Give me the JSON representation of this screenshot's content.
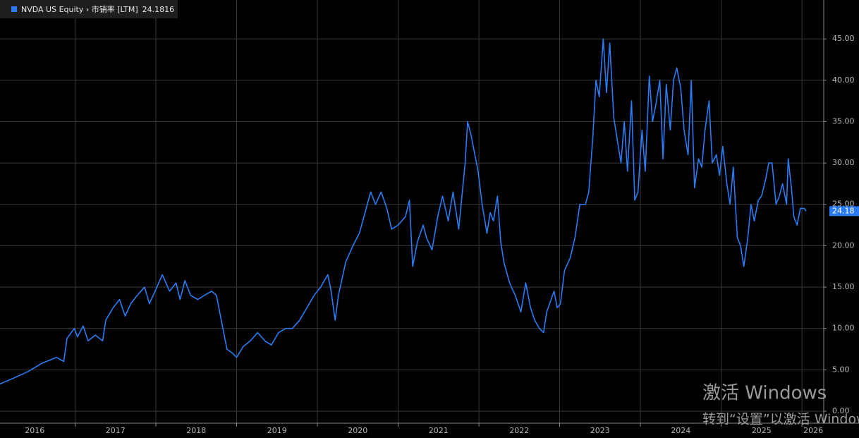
{
  "chart_data": {
    "type": "line",
    "x": [
      2016.07,
      2016.24,
      2016.42,
      2016.59,
      2016.77,
      2016.86,
      2016.9,
      2016.99,
      2017.03,
      2017.1,
      2017.16,
      2017.25,
      2017.34,
      2017.38,
      2017.47,
      2017.55,
      2017.62,
      2017.69,
      2017.77,
      2017.86,
      2017.92,
      2017.99,
      2018.08,
      2018.17,
      2018.25,
      2018.3,
      2018.36,
      2018.43,
      2018.52,
      2018.6,
      2018.69,
      2018.75,
      2018.79,
      2018.85,
      2018.88,
      2018.95,
      2019.0,
      2019.08,
      2019.17,
      2019.26,
      2019.35,
      2019.43,
      2019.52,
      2019.61,
      2019.69,
      2019.78,
      2019.87,
      2019.96,
      2020.04,
      2020.13,
      2020.17,
      2020.22,
      2020.26,
      2020.35,
      2020.44,
      2020.52,
      2020.59,
      2020.66,
      2020.72,
      2020.79,
      2020.86,
      2020.92,
      2021.0,
      2021.09,
      2021.14,
      2021.18,
      2021.24,
      2021.31,
      2021.35,
      2021.42,
      2021.49,
      2021.55,
      2021.62,
      2021.68,
      2021.75,
      2021.79,
      2021.83,
      2021.86,
      2021.9,
      2021.95,
      2021.99,
      2022.04,
      2022.1,
      2022.14,
      2022.18,
      2022.23,
      2022.27,
      2022.31,
      2022.38,
      2022.45,
      2022.52,
      2022.58,
      2022.64,
      2022.69,
      2022.75,
      2022.8,
      2022.84,
      2022.93,
      2022.97,
      2023.01,
      2023.06,
      2023.13,
      2023.19,
      2023.25,
      2023.32,
      2023.36,
      2023.41,
      2023.45,
      2023.49,
      2023.54,
      2023.58,
      2023.62,
      2023.67,
      2023.71,
      2023.76,
      2023.8,
      2023.84,
      2023.89,
      2023.93,
      2023.97,
      2024.02,
      2024.06,
      2024.11,
      2024.15,
      2024.19,
      2024.24,
      2024.28,
      2024.32,
      2024.37,
      2024.41,
      2024.45,
      2024.5,
      2024.54,
      2024.59,
      2024.63,
      2024.67,
      2024.72,
      2024.76,
      2024.8,
      2024.85,
      2024.89,
      2024.94,
      2024.98,
      2025.02,
      2025.07,
      2025.11,
      2025.15,
      2025.2,
      2025.24,
      2025.28,
      2025.33,
      2025.37,
      2025.41,
      2025.46,
      2025.5,
      2025.55,
      2025.59,
      2025.63,
      2025.68,
      2025.72,
      2025.76,
      2025.81,
      2025.83,
      2025.87,
      2025.9,
      2025.94,
      2025.98,
      2026.03,
      2026.05
    ],
    "series": [
      {
        "name": "NVDA US Equity › 市销率 [LTM]",
        "color": "#2b7bf3",
        "values": [
          3.3,
          4.0,
          4.8,
          5.8,
          6.5,
          6.0,
          8.8,
          10.0,
          9.0,
          10.3,
          8.5,
          9.2,
          8.5,
          11.0,
          12.5,
          13.5,
          11.5,
          13.0,
          14.0,
          15.0,
          13.0,
          14.5,
          16.5,
          14.5,
          15.5,
          13.5,
          15.8,
          14.0,
          13.5,
          14.0,
          14.5,
          14.0,
          12.0,
          9.0,
          7.5,
          7.0,
          6.5,
          7.8,
          8.5,
          9.5,
          8.5,
          8.0,
          9.5,
          10.0,
          10.0,
          11.0,
          12.5,
          14.0,
          15.0,
          16.5,
          14.5,
          11.0,
          14.0,
          18.0,
          20.0,
          21.5,
          24.0,
          26.5,
          25.0,
          26.5,
          24.5,
          22.0,
          22.5,
          23.5,
          25.5,
          17.5,
          20.5,
          22.5,
          21.0,
          19.5,
          23.5,
          26.0,
          23.0,
          26.5,
          22.0,
          26.0,
          30.0,
          35.0,
          33.5,
          31.0,
          29.0,
          25.0,
          21.5,
          24.0,
          23.0,
          26.0,
          20.5,
          18.0,
          15.5,
          14.0,
          12.0,
          15.5,
          12.5,
          11.0,
          10.0,
          9.5,
          12.0,
          14.5,
          12.5,
          13.0,
          17.0,
          18.5,
          21.0,
          25.0,
          25.0,
          26.5,
          33.0,
          40.0,
          38.0,
          45.0,
          38.5,
          44.5,
          35.5,
          33.0,
          30.0,
          35.0,
          29.0,
          37.5,
          25.5,
          26.5,
          34.0,
          29.0,
          40.5,
          35.0,
          37.0,
          40.0,
          30.5,
          39.5,
          34.0,
          40.0,
          41.5,
          39.0,
          34.0,
          31.0,
          40.0,
          27.0,
          30.5,
          29.5,
          34.0,
          37.5,
          30.0,
          31.0,
          28.5,
          32.0,
          27.5,
          25.0,
          29.5,
          21.0,
          20.0,
          17.5,
          21.0,
          25.0,
          23.0,
          25.5,
          26.0,
          28.0,
          30.0,
          30.0,
          25.0,
          26.0,
          27.5,
          25.0,
          30.5,
          27.0,
          23.5,
          22.5,
          24.5,
          24.5,
          24.18
        ]
      }
    ],
    "last_value": 24.1816,
    "end_tag": 24.18,
    "xlim": [
      2016.07,
      2026.27
    ],
    "xticks": [
      {
        "value": 2016.5,
        "label": "2016"
      },
      {
        "value": 2017.5,
        "label": "2017"
      },
      {
        "value": 2018.5,
        "label": "2018"
      },
      {
        "value": 2019.5,
        "label": "2019"
      },
      {
        "value": 2020.5,
        "label": "2020"
      },
      {
        "value": 2021.5,
        "label": "2021"
      },
      {
        "value": 2022.5,
        "label": "2022"
      },
      {
        "value": 2023.5,
        "label": "2023"
      },
      {
        "value": 2024.5,
        "label": "2024"
      },
      {
        "value": 2025.5,
        "label": "2025"
      },
      {
        "value": 2026.14,
        "label": "2026"
      }
    ],
    "xgrid": [
      2017,
      2018,
      2019,
      2020,
      2021,
      2022,
      2023,
      2024,
      2025,
      2026
    ],
    "ylim": [
      -1.45,
      49.7
    ],
    "yticks": [
      {
        "value": 0,
        "label": "0.00"
      },
      {
        "value": 5,
        "label": "5.00"
      },
      {
        "value": 10,
        "label": "10.00"
      },
      {
        "value": 15,
        "label": "15.00"
      },
      {
        "value": 20,
        "label": "20.00"
      },
      {
        "value": 25,
        "label": "25.00"
      },
      {
        "value": 30,
        "label": "30.00"
      },
      {
        "value": 35,
        "label": "35.00"
      },
      {
        "value": 40,
        "label": "40.00"
      },
      {
        "value": 45,
        "label": "45.00"
      }
    ],
    "grid": true
  },
  "watermark": {
    "line1": "激活 Windows",
    "line2": "转到“设置”以激活 Windows。"
  }
}
